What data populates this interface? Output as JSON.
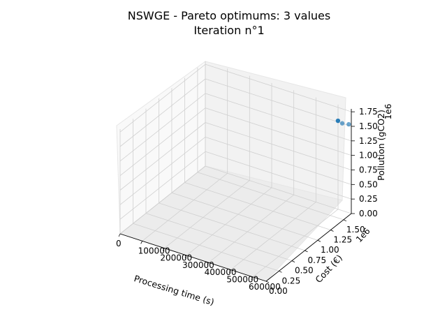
{
  "chart_data": {
    "type": "scatter3d",
    "title": "NSWGE - Pareto optimums: 3 values",
    "subtitle": "Iteration n°1",
    "xlabel": "Processing time (s)",
    "ylabel": "Cost (€)",
    "zlabel": "Pollution (gCO2)",
    "y_offset_label": "1e6",
    "z_offset_label": "1e6",
    "x_ticks": [
      "0",
      "100000",
      "200000",
      "300000",
      "400000",
      "500000",
      "600000"
    ],
    "y_ticks": [
      "0.00",
      "0.25",
      "0.50",
      "0.75",
      "1.00",
      "1.25",
      "1.50"
    ],
    "z_ticks": [
      "0.00",
      "0.25",
      "0.50",
      "0.75",
      "1.00",
      "1.25",
      "1.50",
      "1.75"
    ],
    "xlim": [
      0,
      660000
    ],
    "ylim": [
      0,
      1650000
    ],
    "zlim": [
      0,
      1800000
    ],
    "grid": true,
    "point_color": "#1f77b4",
    "points": [
      {
        "x": 630000,
        "y": 1520000,
        "z": 1650000
      },
      {
        "x": 640000,
        "y": 1560000,
        "z": 1590000
      },
      {
        "x": 660000,
        "y": 1600000,
        "z": 1570000
      }
    ]
  }
}
